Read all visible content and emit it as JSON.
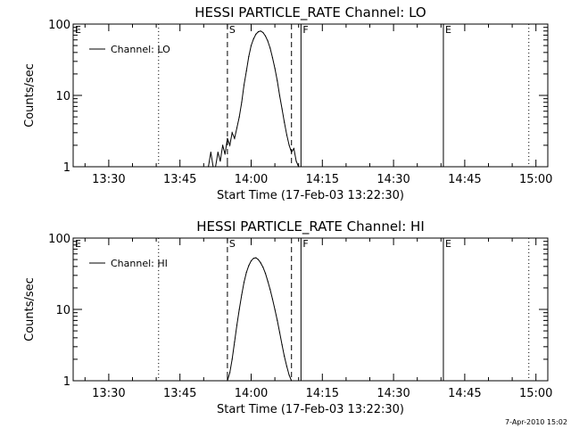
{
  "chart_data": [
    {
      "type": "line",
      "title": "HESSI PARTICLE_RATE Channel: LO",
      "xlabel": "Start Time (17-Feb-03 13:22:30)",
      "ylabel": "Counts/sec",
      "y_scale": "log",
      "ylim": [
        1,
        100
      ],
      "xlim": [
        "13:22:30",
        "15:02:30"
      ],
      "x_tick_labels": [
        "13:30",
        "13:45",
        "14:00",
        "14:15",
        "14:30",
        "14:45",
        "15:00"
      ],
      "y_tick_labels": [
        "1",
        "10",
        "100"
      ],
      "legend": {
        "position": "top-left",
        "entries": [
          "Channel: LO"
        ]
      },
      "grid": false,
      "markers": [
        {
          "label": "E",
          "time": "13:22:30",
          "style": "dotted"
        },
        {
          "label": "",
          "time": "13:40:30",
          "style": "dotted"
        },
        {
          "label": "S",
          "time": "13:55:00",
          "style": "dashed"
        },
        {
          "label": "",
          "time": "14:08:30",
          "style": "dashed"
        },
        {
          "label": "F",
          "time": "14:10:30",
          "style": "solid"
        },
        {
          "label": "E",
          "time": "14:40:30",
          "style": "solid"
        },
        {
          "label": "",
          "time": "14:58:30",
          "style": "dotted"
        }
      ],
      "series": [
        {
          "name": "Channel: LO",
          "points": [
            [
              "13:51:00",
              1.0
            ],
            [
              "13:51:30",
              1.6
            ],
            [
              "13:52:00",
              1.0
            ],
            [
              "13:52:30",
              1.0
            ],
            [
              "13:53:00",
              1.6
            ],
            [
              "13:53:30",
              1.2
            ],
            [
              "13:54:00",
              2.0
            ],
            [
              "13:54:30",
              1.5
            ],
            [
              "13:55:00",
              2.5
            ],
            [
              "13:55:30",
              2.0
            ],
            [
              "13:56:00",
              3.0
            ],
            [
              "13:56:30",
              2.5
            ],
            [
              "13:57:00",
              3.5
            ],
            [
              "13:57:30",
              5.0
            ],
            [
              "13:58:00",
              8.0
            ],
            [
              "13:58:30",
              14.0
            ],
            [
              "13:59:00",
              22.0
            ],
            [
              "13:59:30",
              35.0
            ],
            [
              "14:00:00",
              50.0
            ],
            [
              "14:00:30",
              62.0
            ],
            [
              "14:01:00",
              72.0
            ],
            [
              "14:01:30",
              78.0
            ],
            [
              "14:02:00",
              80.0
            ],
            [
              "14:02:30",
              76.0
            ],
            [
              "14:03:00",
              68.0
            ],
            [
              "14:03:30",
              58.0
            ],
            [
              "14:04:00",
              46.0
            ],
            [
              "14:04:30",
              34.0
            ],
            [
              "14:05:00",
              24.0
            ],
            [
              "14:05:30",
              16.0
            ],
            [
              "14:06:00",
              10.0
            ],
            [
              "14:06:30",
              6.5
            ],
            [
              "14:07:00",
              4.2
            ],
            [
              "14:07:30",
              2.8
            ],
            [
              "14:08:00",
              2.0
            ],
            [
              "14:08:30",
              1.6
            ],
            [
              "14:09:00",
              1.8
            ],
            [
              "14:09:30",
              1.2
            ],
            [
              "14:10:00",
              1.0
            ]
          ]
        }
      ]
    },
    {
      "type": "line",
      "title": "HESSI PARTICLE_RATE Channel: HI",
      "xlabel": "Start Time (17-Feb-03 13:22:30)",
      "ylabel": "Counts/sec",
      "y_scale": "log",
      "ylim": [
        1,
        100
      ],
      "xlim": [
        "13:22:30",
        "15:02:30"
      ],
      "x_tick_labels": [
        "13:30",
        "13:45",
        "14:00",
        "14:15",
        "14:30",
        "14:45",
        "15:00"
      ],
      "y_tick_labels": [
        "1",
        "10",
        "100"
      ],
      "legend": {
        "position": "top-left",
        "entries": [
          "Channel: HI"
        ]
      },
      "grid": false,
      "markers": [
        {
          "label": "E",
          "time": "13:22:30",
          "style": "dotted"
        },
        {
          "label": "",
          "time": "13:40:30",
          "style": "dotted"
        },
        {
          "label": "S",
          "time": "13:55:00",
          "style": "dashed"
        },
        {
          "label": "",
          "time": "14:08:30",
          "style": "dashed"
        },
        {
          "label": "F",
          "time": "14:10:30",
          "style": "solid"
        },
        {
          "label": "E",
          "time": "14:40:30",
          "style": "solid"
        },
        {
          "label": "",
          "time": "14:58:30",
          "style": "dotted"
        }
      ],
      "series": [
        {
          "name": "Channel: HI",
          "points": [
            [
              "13:55:00",
              1.0
            ],
            [
              "13:55:30",
              1.3
            ],
            [
              "13:56:00",
              2.0
            ],
            [
              "13:56:30",
              3.5
            ],
            [
              "13:57:00",
              6.0
            ],
            [
              "13:57:30",
              10.0
            ],
            [
              "13:58:00",
              16.0
            ],
            [
              "13:58:30",
              24.0
            ],
            [
              "13:59:00",
              33.0
            ],
            [
              "13:59:30",
              41.0
            ],
            [
              "14:00:00",
              48.0
            ],
            [
              "14:00:30",
              52.0
            ],
            [
              "14:01:00",
              53.0
            ],
            [
              "14:01:30",
              50.0
            ],
            [
              "14:02:00",
              45.0
            ],
            [
              "14:02:30",
              39.0
            ],
            [
              "14:03:00",
              32.0
            ],
            [
              "14:03:30",
              25.0
            ],
            [
              "14:04:00",
              19.0
            ],
            [
              "14:04:30",
              14.0
            ],
            [
              "14:05:00",
              10.0
            ],
            [
              "14:05:30",
              7.0
            ],
            [
              "14:06:00",
              4.8
            ],
            [
              "14:06:30",
              3.2
            ],
            [
              "14:07:00",
              2.2
            ],
            [
              "14:07:30",
              1.6
            ],
            [
              "14:08:00",
              1.2
            ],
            [
              "14:08:30",
              1.0
            ]
          ]
        }
      ]
    }
  ],
  "footer": {
    "timestamp": "7-Apr-2010 15:02"
  }
}
